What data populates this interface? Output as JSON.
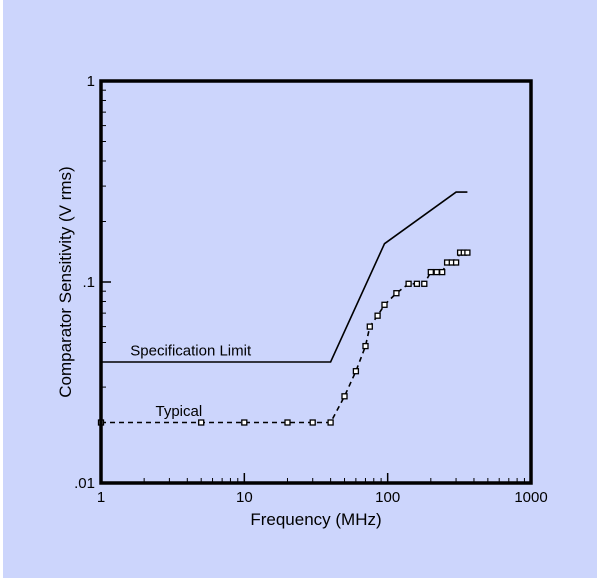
{
  "chart_data": {
    "type": "line",
    "title": "",
    "xlabel": "Frequency (MHz)",
    "ylabel": "Comparator Sensitivity (V rms)",
    "x_scale": "log",
    "y_scale": "log",
    "xlim": [
      1,
      1000
    ],
    "ylim": [
      0.01,
      1
    ],
    "grid": false,
    "legend": "none",
    "x_ticks": [
      {
        "value": 1,
        "label": "1"
      },
      {
        "value": 10,
        "label": "10"
      },
      {
        "value": 100,
        "label": "100"
      },
      {
        "value": 1000,
        "label": "1000"
      }
    ],
    "y_ticks": [
      {
        "value": 0.01,
        "label": ".01"
      },
      {
        "value": 0.1,
        "label": ".1"
      },
      {
        "value": 1,
        "label": "1"
      }
    ],
    "series": [
      {
        "name": "Specification Limit",
        "style": "solid",
        "color": "#000000",
        "x": [
          1,
          40,
          95,
          300,
          360
        ],
        "y": [
          0.04,
          0.04,
          0.155,
          0.28,
          0.28
        ]
      },
      {
        "name": "Typical",
        "style": "dashed",
        "color": "#000000",
        "marker": "square",
        "x": [
          1,
          5,
          10,
          20,
          30,
          40,
          50,
          60,
          70,
          75,
          85,
          95,
          115,
          140,
          160,
          180,
          200,
          220,
          240,
          260,
          280,
          300,
          320,
          340,
          360
        ],
        "y": [
          0.02,
          0.02,
          0.02,
          0.02,
          0.02,
          0.02,
          0.027,
          0.036,
          0.048,
          0.06,
          0.068,
          0.077,
          0.088,
          0.098,
          0.098,
          0.098,
          0.112,
          0.112,
          0.112,
          0.125,
          0.125,
          0.125,
          0.14,
          0.14,
          0.14
        ]
      }
    ],
    "annotations": [
      {
        "text": "Specification Limit",
        "x": 1.6,
        "y": 0.043
      },
      {
        "text": "Typical",
        "x": 2.4,
        "y": 0.0215
      }
    ]
  },
  "colors": {
    "background": "#ccd5fc",
    "plot_area": "#ccd5fc",
    "axis": "#000000"
  }
}
